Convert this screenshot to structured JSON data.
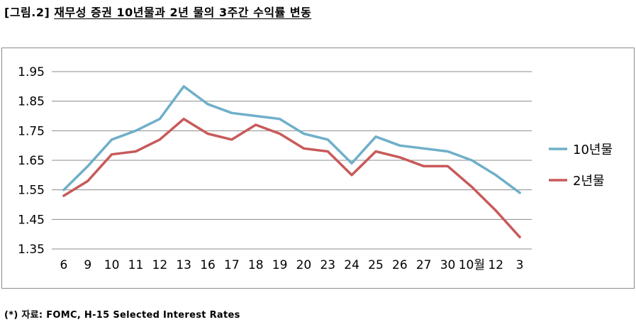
{
  "figure": {
    "number": "[그림.2]",
    "title": "재무성 증권 10년물과 2년 물의 3주간 수익률 변동"
  },
  "source": "(*) 자료: FOMC, H-15 Selected Interest Rates",
  "chart_data": {
    "type": "line",
    "title": "",
    "xlabel": "",
    "ylabel": "",
    "categories": [
      "6",
      "9",
      "10",
      "11",
      "12",
      "13",
      "16",
      "17",
      "18",
      "19",
      "20",
      "23",
      "24",
      "25",
      "26",
      "27",
      "30",
      "10월",
      "12",
      "3"
    ],
    "yticks": [
      "1.35",
      "1.45",
      "1.55",
      "1.65",
      "1.75",
      "1.85",
      "1.95"
    ],
    "ylim": [
      1.35,
      1.95
    ],
    "grid": true,
    "legend_position": "right",
    "series": [
      {
        "name": "10년물",
        "color": "#6fafc9",
        "values": [
          1.55,
          1.63,
          1.72,
          1.75,
          1.79,
          1.9,
          1.84,
          1.81,
          1.8,
          1.79,
          1.74,
          1.72,
          1.64,
          1.73,
          1.7,
          1.69,
          1.68,
          1.65,
          1.6,
          1.54
        ]
      },
      {
        "name": "2년물",
        "color": "#c85a5a",
        "values": [
          1.53,
          1.58,
          1.67,
          1.68,
          1.72,
          1.79,
          1.74,
          1.72,
          1.77,
          1.74,
          1.69,
          1.68,
          1.6,
          1.68,
          1.66,
          1.63,
          1.63,
          1.56,
          1.48,
          1.39
        ]
      }
    ]
  }
}
